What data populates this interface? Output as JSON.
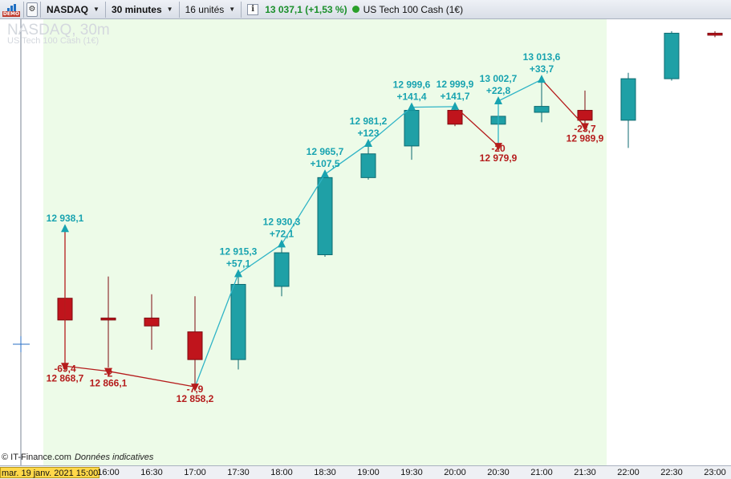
{
  "toolbar": {
    "demo_label": "DEMO",
    "instrument_selector": "NASDAQ",
    "timeframe_selector": "30 minutes",
    "units_selector": "16 unités",
    "info_icon": "info-icon",
    "last_price": "13 037,1 (+1,53 %)",
    "instrument_name": "US Tech 100 Cash (1€)",
    "status_color": "#2aa02a"
  },
  "watermark": {
    "title": "NASDAQ, 30m",
    "subtitle": "US Tech 100 Cash (1€)"
  },
  "footer": {
    "source": "© IT-Finance.com",
    "note": "Données indicatives"
  },
  "cursor_date": "mar. 19 janv. 2021 15:00",
  "colors": {
    "up": "#1fa0a6",
    "down": "#c0141c",
    "highlight_bg": "#edfbe8",
    "zigzag_up": "#2fb4c6",
    "zigzag_down": "#b51c1c"
  },
  "chart_data": {
    "type": "candlestick",
    "ylim": [
      12825,
      13040
    ],
    "x_ticks": [
      "16:00",
      "16:30",
      "17:00",
      "17:30",
      "18:00",
      "18:30",
      "19:00",
      "19:30",
      "20:00",
      "20:30",
      "21:00",
      "21:30",
      "22:00",
      "22:30",
      "23:00"
    ],
    "candles": [
      {
        "time": "15:30",
        "open": 12903,
        "high": 12925,
        "low": 12869,
        "close": 12892
      },
      {
        "time": "16:00",
        "open": 12893,
        "high": 12914,
        "low": 12868,
        "close": 12892
      },
      {
        "time": "16:30",
        "open": 12893,
        "high": 12905,
        "low": 12877,
        "close": 12889
      },
      {
        "time": "17:00",
        "open": 12886,
        "high": 12904,
        "low": 12858,
        "close": 12872
      },
      {
        "time": "17:30",
        "open": 12872,
        "high": 12916,
        "low": 12867,
        "close": 12910
      },
      {
        "time": "18:00",
        "open": 12909,
        "high": 12930,
        "low": 12904,
        "close": 12926
      },
      {
        "time": "18:30",
        "open": 12925,
        "high": 12966,
        "low": 12924,
        "close": 12964
      },
      {
        "time": "19:00",
        "open": 12964,
        "high": 12981,
        "low": 12963,
        "close": 12976
      },
      {
        "time": "19:30",
        "open": 12980,
        "high": 12999,
        "low": 12973,
        "close": 12998
      },
      {
        "time": "20:00",
        "open": 12998,
        "high": 13000,
        "low": 12990,
        "close": 12991
      },
      {
        "time": "20:30",
        "open": 12991,
        "high": 13002,
        "low": 12981,
        "close": 12995
      },
      {
        "time": "21:00",
        "open": 12997,
        "high": 13014,
        "low": 12992,
        "close": 13000
      },
      {
        "time": "21:30",
        "open": 12998,
        "high": 13008,
        "low": 12989,
        "close": 12993
      },
      {
        "time": "22:00",
        "open": 12993,
        "high": 13017,
        "low": 12979,
        "close": 13014
      },
      {
        "time": "22:30",
        "open": 13014,
        "high": 13038,
        "low": 13013,
        "close": 13037
      },
      {
        "time": "23:00",
        "open": 13037,
        "high": 13038,
        "low": 13035,
        "close": 13036
      }
    ],
    "zigzag": [
      {
        "candle": 0,
        "dir": "up",
        "price": "12 938,1",
        "change": "",
        "value": 12938.1
      },
      {
        "candle": 0,
        "dir": "down",
        "price": "12 868,7",
        "change": "-69,4",
        "value": 12868.7
      },
      {
        "candle": 1,
        "dir": "down",
        "price": "12 866,1",
        "change": "-2",
        "value": 12866.1
      },
      {
        "candle": 3,
        "dir": "down",
        "price": "12 858,2",
        "change": "-7,9",
        "value": 12858.2
      },
      {
        "candle": 4,
        "dir": "up",
        "price": "12 915,3",
        "change": "+57,1",
        "value": 12915.3
      },
      {
        "candle": 5,
        "dir": "up",
        "price": "12 930,3",
        "change": "+72,1",
        "value": 12930.3
      },
      {
        "candle": 6,
        "dir": "up",
        "price": "12 965,7",
        "change": "+107,5",
        "value": 12965.7
      },
      {
        "candle": 7,
        "dir": "up",
        "price": "12 981,2",
        "change": "+123",
        "value": 12981.2
      },
      {
        "candle": 8,
        "dir": "up",
        "price": "12 999,6",
        "change": "+141,4",
        "value": 12999.6
      },
      {
        "candle": 9,
        "dir": "up",
        "price": "12 999,9",
        "change": "+141,7",
        "value": 12999.9
      },
      {
        "candle": 10,
        "dir": "down",
        "price": "12 979,9",
        "change": "-20",
        "value": 12979.9
      },
      {
        "candle": 10,
        "dir": "up",
        "price": "13 002,7",
        "change": "+22,8",
        "value": 13002.7
      },
      {
        "candle": 11,
        "dir": "up",
        "price": "13 013,6",
        "change": "+33,7",
        "value": 13013.6
      },
      {
        "candle": 12,
        "dir": "down",
        "price": "12 989,9",
        "change": "-23,7",
        "value": 12989.9
      }
    ],
    "highlight_range": {
      "from_candle": 0,
      "to_candle": 12
    },
    "grid": false
  }
}
